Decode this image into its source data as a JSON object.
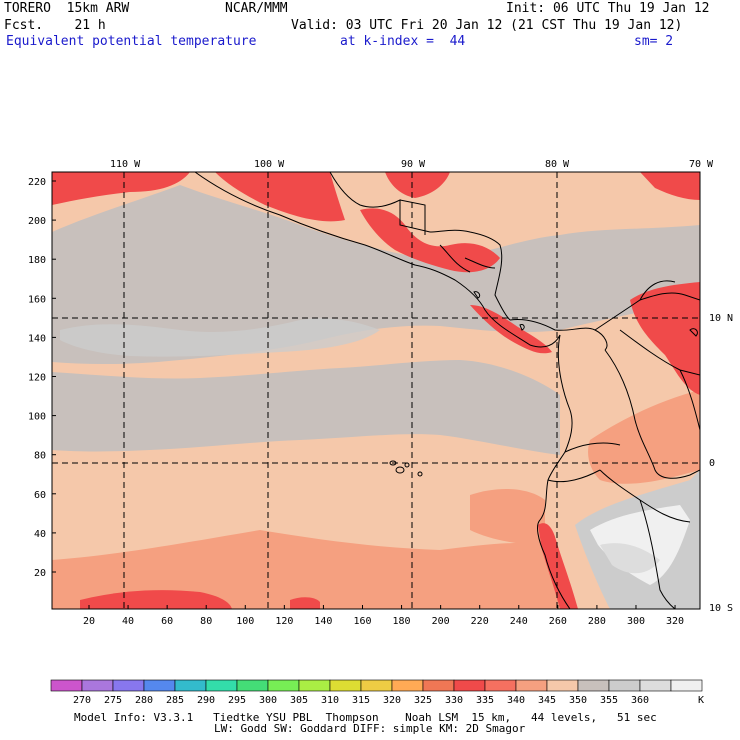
{
  "header": {
    "model": "TORERO  15km ARW",
    "center": "NCAR/MMM",
    "init": "Init: 06 UTC Thu 19 Jan 12",
    "fcst": "Fcst.    21 h",
    "valid": "Valid: 03 UTC Fri 20 Jan 12 (21 CST Thu 19 Jan 12)",
    "field": "Equivalent potential temperature",
    "level": "at k-index =  44",
    "smoothing": "sm= 2"
  },
  "map": {
    "lon_labels": [
      "110 W",
      "100 W",
      "90 W",
      "80 W",
      "70 W"
    ],
    "lat_labels": [
      "10 N",
      "0",
      "10 S"
    ],
    "y_ticks": [
      "220",
      "200",
      "180",
      "160",
      "140",
      "120",
      "100",
      "80",
      "60",
      "40",
      "20"
    ],
    "x_ticks": [
      "20",
      "40",
      "60",
      "80",
      "100",
      "120",
      "140",
      "160",
      "180",
      "200",
      "220",
      "240",
      "260",
      "280",
      "300",
      "320"
    ]
  },
  "colorbar": {
    "values": [
      "270",
      "275",
      "280",
      "285",
      "290",
      "295",
      "300",
      "305",
      "310",
      "315",
      "320",
      "325",
      "330",
      "335",
      "340",
      "345",
      "350",
      "355",
      "360"
    ],
    "unit": "K",
    "colors": [
      "#cc55cc",
      "#aa77dd",
      "#8877ee",
      "#5588ee",
      "#33bbcc",
      "#33ddaa",
      "#44dd77",
      "#77ee55",
      "#aaee44",
      "#dddd33",
      "#eecc44",
      "#ffaa55",
      "#f07755",
      "#f04a4a",
      "#f57060",
      "#f5a080",
      "#f5c8aa",
      "#c8c0bc",
      "#cccccc",
      "#dddddd",
      "#f0f0f0"
    ]
  },
  "footer": {
    "line1": "Model Info: V3.3.1   Tiedtke YSU PBL  Thompson    Noah LSM  15 km,   44 levels,   51 sec",
    "line2": "LW: Godd SW: Goddard DIFF: simple KM: 2D Smagor"
  }
}
